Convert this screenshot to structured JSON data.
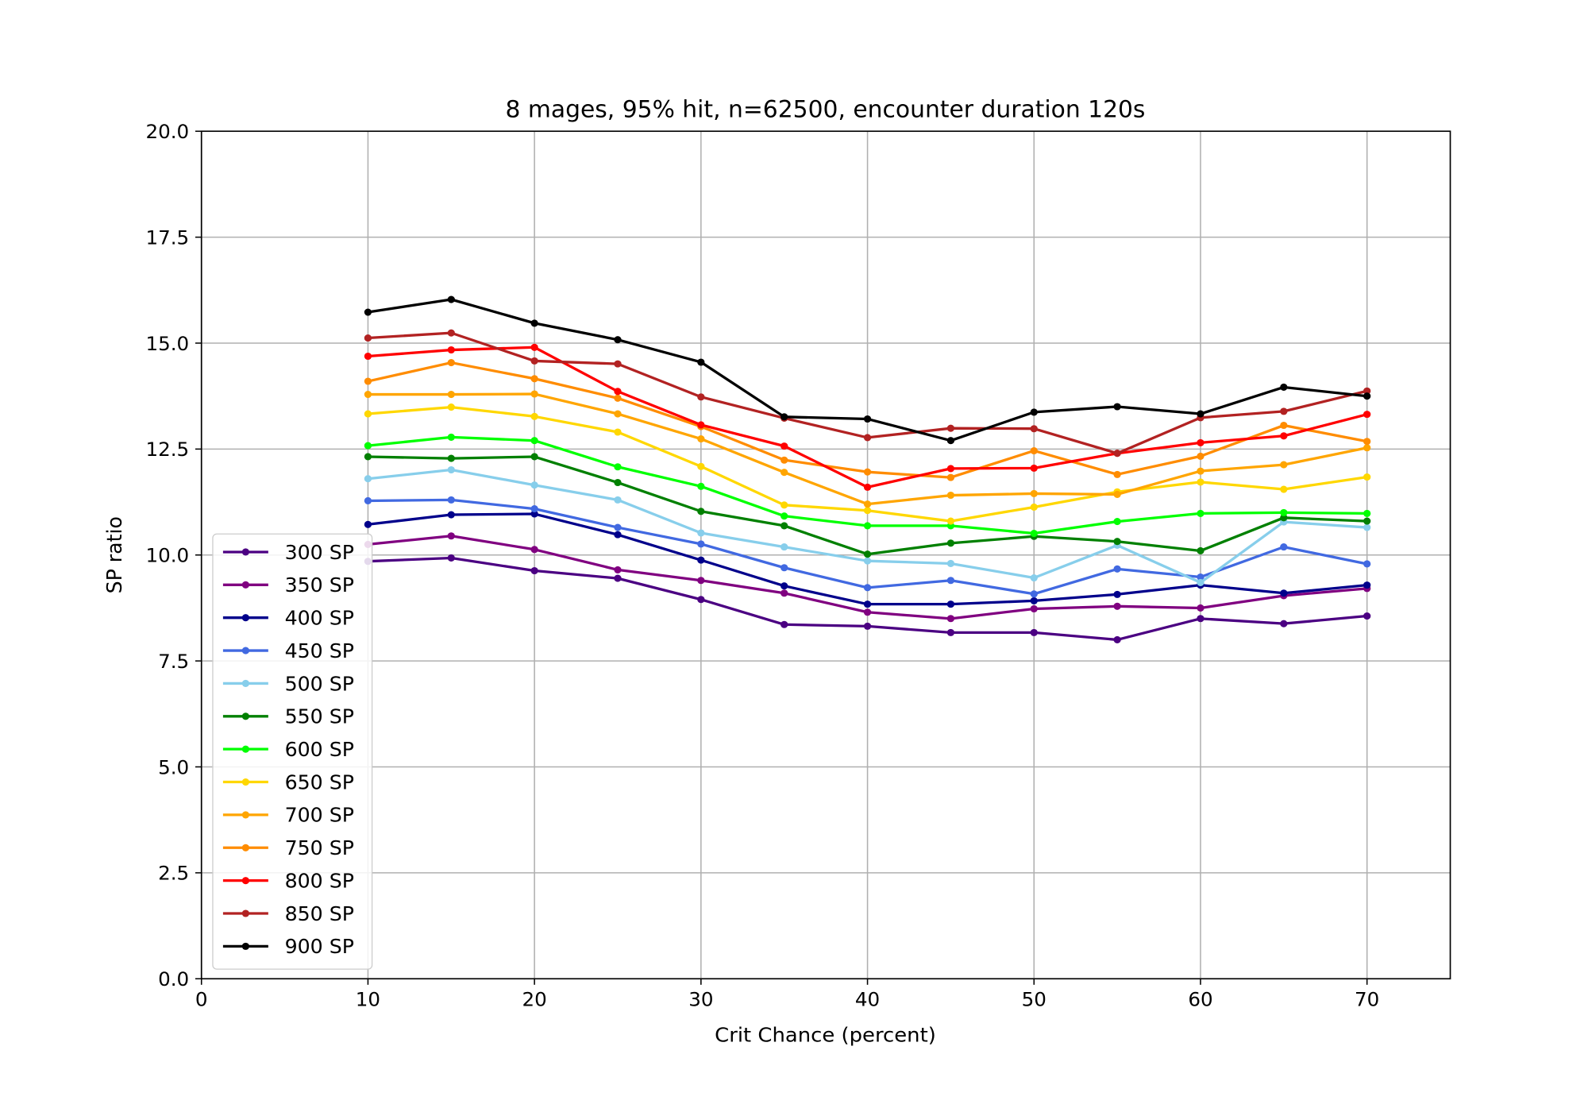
{
  "chart_data": {
    "type": "line",
    "title": "8 mages, 95% hit, n=62500, encounter duration 120s",
    "xlabel": "Crit Chance (percent)",
    "ylabel": "SP ratio",
    "xlim": [
      0,
      75
    ],
    "ylim": [
      0,
      20
    ],
    "grid": true,
    "legend_position": "lower-left",
    "x": [
      10,
      15,
      20,
      25,
      30,
      35,
      40,
      45,
      50,
      55,
      60,
      65,
      70
    ],
    "x_ticks": [
      "0",
      "10",
      "20",
      "30",
      "40",
      "50",
      "60",
      "70"
    ],
    "y_ticks": [
      "0.0",
      "2.5",
      "5.0",
      "7.5",
      "10.0",
      "12.5",
      "15.0",
      "17.5",
      "20.0"
    ],
    "series": [
      {
        "name": "300 SP",
        "color": "#4b0082",
        "values": [
          9.85,
          9.93,
          9.63,
          9.45,
          8.95,
          8.36,
          8.32,
          8.17,
          8.17,
          8.0,
          8.5,
          8.38,
          8.56
        ]
      },
      {
        "name": "350 SP",
        "color": "#800080",
        "values": [
          10.25,
          10.45,
          10.13,
          9.65,
          9.4,
          9.1,
          8.65,
          8.5,
          8.73,
          8.79,
          8.75,
          9.04,
          9.21
        ]
      },
      {
        "name": "400 SP",
        "color": "#00008b",
        "values": [
          10.72,
          10.95,
          10.97,
          10.48,
          9.88,
          9.27,
          8.84,
          8.84,
          8.92,
          9.07,
          9.29,
          9.1,
          9.29
        ]
      },
      {
        "name": "450 SP",
        "color": "#4169e1",
        "values": [
          11.28,
          11.3,
          11.09,
          10.65,
          10.26,
          9.7,
          9.23,
          9.4,
          9.08,
          9.67,
          9.48,
          10.19,
          9.79
        ]
      },
      {
        "name": "500 SP",
        "color": "#87ceeb",
        "values": [
          11.8,
          12.01,
          11.65,
          11.3,
          10.52,
          10.19,
          9.86,
          9.8,
          9.46,
          10.23,
          9.35,
          10.78,
          10.65
        ]
      },
      {
        "name": "550 SP",
        "color": "#008000",
        "values": [
          12.32,
          12.28,
          12.32,
          11.71,
          11.03,
          10.69,
          10.02,
          10.28,
          10.44,
          10.32,
          10.1,
          10.88,
          10.8
        ]
      },
      {
        "name": "600 SP",
        "color": "#00ff00",
        "values": [
          12.58,
          12.78,
          12.7,
          12.08,
          11.62,
          10.92,
          10.69,
          10.69,
          10.51,
          10.79,
          10.98,
          11.0,
          10.98
        ]
      },
      {
        "name": "650 SP",
        "color": "#ffd700",
        "values": [
          13.33,
          13.49,
          13.27,
          12.9,
          12.09,
          11.18,
          11.05,
          10.8,
          11.13,
          11.49,
          11.72,
          11.55,
          11.84
        ]
      },
      {
        "name": "700 SP",
        "color": "#ffa500",
        "values": [
          13.79,
          13.79,
          13.8,
          13.33,
          12.74,
          11.95,
          11.2,
          11.41,
          11.45,
          11.43,
          11.98,
          12.13,
          12.53
        ]
      },
      {
        "name": "750 SP",
        "color": "#ff8c00",
        "values": [
          14.1,
          14.54,
          14.16,
          13.7,
          13.03,
          12.24,
          11.96,
          11.83,
          12.46,
          11.9,
          12.33,
          13.06,
          12.68
        ]
      },
      {
        "name": "800 SP",
        "color": "#ff0000",
        "values": [
          14.69,
          14.84,
          14.9,
          13.86,
          13.07,
          12.57,
          11.6,
          12.04,
          12.05,
          12.4,
          12.65,
          12.81,
          13.32
        ]
      },
      {
        "name": "850 SP",
        "color": "#b22222",
        "values": [
          15.12,
          15.24,
          14.58,
          14.51,
          13.73,
          13.23,
          12.77,
          12.99,
          12.98,
          12.4,
          13.24,
          13.39,
          13.87
        ]
      },
      {
        "name": "900 SP",
        "color": "#000000",
        "values": [
          15.73,
          16.03,
          15.47,
          15.08,
          14.55,
          13.26,
          13.21,
          12.7,
          13.37,
          13.5,
          13.33,
          13.96,
          13.75
        ]
      }
    ]
  }
}
